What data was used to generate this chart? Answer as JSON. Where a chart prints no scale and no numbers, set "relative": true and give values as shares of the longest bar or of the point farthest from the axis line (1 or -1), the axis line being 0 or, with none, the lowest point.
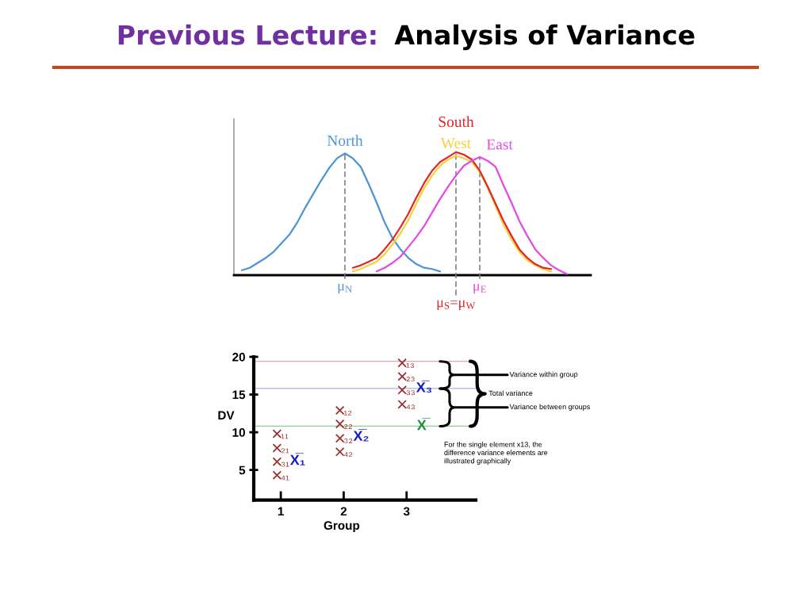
{
  "chart_data": [
    {
      "type": "line",
      "title": "Previous Lecture:",
      "subtitle": "Analysis of Variance",
      "relative": true,
      "categories": [
        null,
        null,
        null,
        null,
        null,
        null,
        null,
        null,
        null,
        null,
        null,
        null,
        null,
        null,
        null,
        null,
        null,
        null,
        null,
        null,
        null,
        null,
        null,
        null,
        null,
        null,
        null,
        null,
        null,
        null,
        null,
        null,
        null,
        null,
        null,
        null,
        null,
        null,
        null,
        null,
        null,
        null
      ],
      "series": [
        {
          "name": "North",
          "color": "#4d94d6",
          "values": [
            0.04,
            0.06,
            0.1,
            0.14,
            0.19,
            0.26,
            0.33,
            0.43,
            0.55,
            0.66,
            0.77,
            0.87,
            0.95,
            0.99,
            0.95,
            0.88,
            0.74,
            0.59,
            0.43,
            0.3,
            0.21,
            0.14,
            0.09,
            0.06,
            0.05,
            0.03,
            null,
            null,
            null,
            null,
            null,
            null,
            null,
            null,
            null,
            null,
            null,
            null,
            null,
            null,
            null,
            null
          ]
        },
        {
          "name": "West",
          "color": "#f2d43a",
          "values": [
            null,
            null,
            null,
            null,
            null,
            null,
            null,
            null,
            null,
            null,
            null,
            null,
            null,
            null,
            0.03,
            0.05,
            0.08,
            0.11,
            0.17,
            0.25,
            0.34,
            0.45,
            0.58,
            0.71,
            0.81,
            0.89,
            0.94,
            0.97,
            0.95,
            0.92,
            0.84,
            0.71,
            0.56,
            0.41,
            0.29,
            0.19,
            0.12,
            0.08,
            0.05,
            0.03,
            null,
            null
          ]
        },
        {
          "name": "South",
          "color": "#e0262a",
          "values": [
            null,
            null,
            null,
            null,
            null,
            null,
            null,
            null,
            null,
            null,
            null,
            null,
            null,
            null,
            0.06,
            0.08,
            0.11,
            0.14,
            0.21,
            0.29,
            0.39,
            0.5,
            0.63,
            0.75,
            0.85,
            0.92,
            0.96,
            1.0,
            0.98,
            0.94,
            0.85,
            0.72,
            0.58,
            0.44,
            0.32,
            0.21,
            0.14,
            0.09,
            0.06,
            0.05,
            null,
            null
          ]
        },
        {
          "name": "East",
          "color": "#e44ae6",
          "values": [
            null,
            null,
            null,
            null,
            null,
            null,
            null,
            null,
            null,
            null,
            null,
            null,
            null,
            null,
            null,
            null,
            null,
            0.03,
            0.06,
            0.1,
            0.15,
            0.23,
            0.31,
            0.4,
            0.51,
            0.62,
            0.72,
            0.81,
            0.89,
            0.93,
            0.96,
            0.93,
            0.88,
            0.73,
            0.59,
            0.44,
            0.32,
            0.21,
            0.14,
            0.08,
            0.04,
            0.01
          ]
        }
      ],
      "annotations": [
        {
          "text": "μ$_{N}$",
          "y": 0.99
        },
        {
          "text": "μ$_{E}$",
          "y": 0.96
        },
        {
          "text": "μ$_{S}$=μ$_{W}$",
          "y": 1.0
        }
      ]
    },
    {
      "type": "scatter",
      "xlabel": "Group",
      "ylabel": "DV",
      "xlim": [
        0.57,
        4.1
      ],
      "ylim": [
        1,
        20
      ],
      "xticks": [
        1,
        2,
        3
      ],
      "yticks": [
        5,
        10,
        15,
        20
      ],
      "marker": "cross",
      "series": [
        {
          "color": "#9b2d2d",
          "x": [
            0.94,
            0.94,
            0.94,
            0.94,
            1.94,
            1.94,
            1.94,
            1.94,
            2.93,
            2.93,
            2.93,
            2.93
          ],
          "values": [
            9.8,
            7.9,
            6.1,
            4.3,
            12.9,
            11.1,
            9.2,
            7.4,
            19.2,
            17.4,
            15.6,
            13.7
          ]
        }
      ],
      "ref_lines": [
        {
          "axis": "y",
          "value": 19.4,
          "color": "#dba6a6",
          "line_style": "solid"
        },
        {
          "axis": "y",
          "value": 15.8,
          "color": "#a9b1ea",
          "line_style": "solid"
        },
        {
          "axis": "y",
          "value": 10.8,
          "color": "#8fd08f",
          "line_style": "solid"
        }
      ],
      "annotations": [
        "Variance within group",
        "Total variance",
        "Variance between groups",
        "For the single element x13, the\ndifference variance elements are\nillustrated graphically",
        "X̅₁",
        "X̅₂",
        {
          "text": "X̅₃",
          "x": 3.28,
          "y": 15.8
        },
        {
          "text": "X̅",
          "x": 3.24,
          "y": 10.8
        },
        {
          "text": "₁₁",
          "x": 0.94,
          "y": 9.8
        },
        {
          "text": "₂₁",
          "x": 0.94,
          "y": 7.9
        },
        {
          "text": "₃₁",
          "x": 0.94,
          "y": 6.1
        },
        {
          "text": "₄₁",
          "x": 0.94,
          "y": 4.3
        },
        {
          "text": "₁₂",
          "x": 1.94,
          "y": 12.9
        },
        {
          "text": "₂₂",
          "x": 1.94,
          "y": 11.1
        },
        {
          "text": "₃₂",
          "x": 1.94,
          "y": 9.2
        },
        {
          "text": "₄₂",
          "x": 1.94,
          "y": 7.4
        },
        {
          "text": "₁₃",
          "x": 2.93,
          "y": 19.2
        },
        {
          "text": "₂₃",
          "x": 2.93,
          "y": 17.4
        },
        {
          "text": "₃₃",
          "x": 2.93,
          "y": 15.6
        },
        {
          "text": "₄₃",
          "x": 2.93,
          "y": 13.7
        }
      ]
    }
  ]
}
